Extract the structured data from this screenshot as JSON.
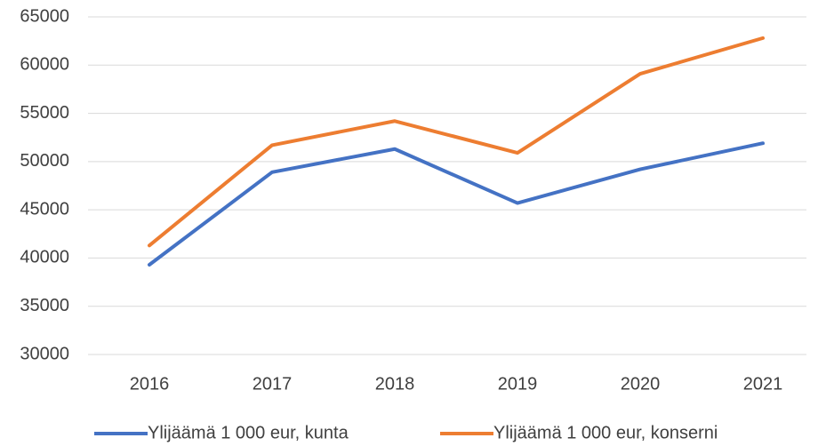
{
  "chart_data": {
    "type": "line",
    "categories": [
      "2016",
      "2017",
      "2018",
      "2019",
      "2020",
      "2021"
    ],
    "series": [
      {
        "name": "Ylijäämä 1 000 eur, kunta",
        "color": "#4472c4",
        "values": [
          39300,
          48900,
          51300,
          45700,
          49200,
          51900
        ]
      },
      {
        "name": "Ylijäämä 1 000 eur, konserni",
        "color": "#ed7d31",
        "values": [
          41300,
          51700,
          54200,
          50900,
          59100,
          62800
        ]
      }
    ],
    "ylim": [
      30000,
      65000
    ],
    "yticks": [
      30000,
      35000,
      40000,
      45000,
      50000,
      55000,
      60000,
      65000
    ],
    "grid": true,
    "legend": "bottom"
  }
}
